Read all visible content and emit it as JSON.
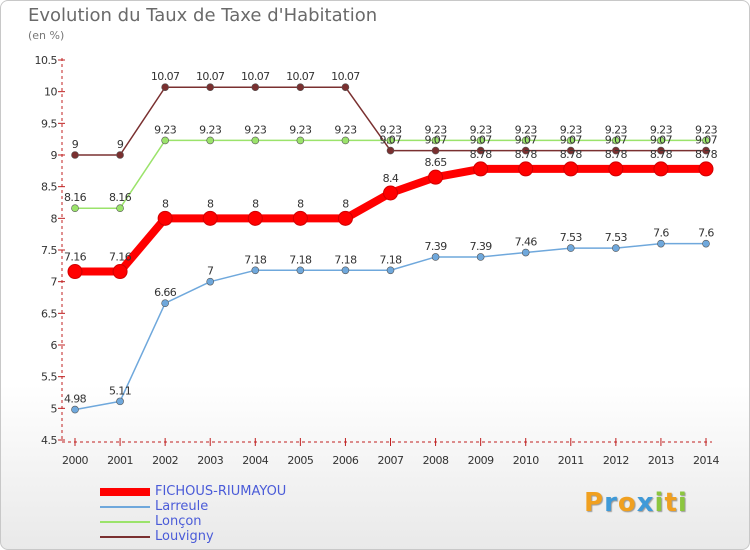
{
  "chart_data": {
    "type": "line",
    "title": "Evolution du Taux de Taxe d'Habitation",
    "ylabel": "(en %)",
    "xlabel": "",
    "ylim": [
      4.5,
      10.5
    ],
    "yticks": [
      "4.5",
      "5",
      "5.5",
      "6",
      "6.5",
      "7",
      "7.5",
      "8",
      "8.5",
      "9",
      "9.5",
      "10",
      "10.5"
    ],
    "x": [
      "2000",
      "2001",
      "2002",
      "2003",
      "2004",
      "2005",
      "2006",
      "2007",
      "2008",
      "2009",
      "2010",
      "2011",
      "2012",
      "2013",
      "2014"
    ],
    "grid": false,
    "series": [
      {
        "name": "FICHOUS-RIUMAYOU",
        "color": "#ff0000",
        "values": [
          7.16,
          7.16,
          8,
          8,
          8,
          8,
          8,
          8.4,
          8.65,
          8.78,
          8.78,
          8.78,
          8.78,
          8.78,
          8.78
        ],
        "labels": [
          "7.16",
          "7.16",
          "8",
          "8",
          "8",
          "8",
          "8",
          "8.4",
          "8.65",
          "8.78",
          "8.78",
          "8.78",
          "8.78",
          "8.78",
          "8.78"
        ]
      },
      {
        "name": "Larreule",
        "color": "#6fa8dc",
        "values": [
          4.98,
          5.11,
          6.66,
          7,
          7.18,
          7.18,
          7.18,
          7.18,
          7.39,
          7.39,
          7.46,
          7.53,
          7.53,
          7.6,
          7.6
        ],
        "labels": [
          "4.98",
          "5.11",
          "6.66",
          "7",
          "7.18",
          "7.18",
          "7.18",
          "7.18",
          "7.39",
          "7.39",
          "7.46",
          "7.53",
          "7.53",
          "7.6",
          "7.6"
        ]
      },
      {
        "name": "Lonçon",
        "color": "#9be36b",
        "values": [
          8.16,
          8.16,
          9.23,
          9.23,
          9.23,
          9.23,
          9.23,
          9.23,
          9.23,
          9.23,
          9.23,
          9.23,
          9.23,
          9.23,
          9.23
        ],
        "labels": [
          "8.16",
          "8.16",
          "9.23",
          "9.23",
          "9.23",
          "9.23",
          "9.23",
          "9.23",
          "9.23",
          "9.23",
          "9.23",
          "9.23",
          "9.23",
          "9.23",
          "9.23"
        ]
      },
      {
        "name": "Louvigny",
        "color": "#7a3030",
        "values": [
          9,
          9,
          10.07,
          10.07,
          10.07,
          10.07,
          10.07,
          9.07,
          9.07,
          9.07,
          9.07,
          9.07,
          9.07,
          9.07,
          9.07
        ],
        "labels": [
          "9",
          "9",
          "10.07",
          "10.07",
          "10.07",
          "10.07",
          "10.07",
          "9.07",
          "9.07",
          "9.07",
          "9.07",
          "9.07",
          "9.07",
          "9.07",
          "9.07"
        ]
      }
    ]
  },
  "brand": {
    "letters": [
      "P",
      "r",
      "o",
      "x",
      "i",
      "t",
      "i"
    ],
    "colors": [
      "#f0a020",
      "#3f9ad8",
      "#f0a020",
      "#3f9ad8",
      "#8cc63f",
      "#f0a020",
      "#8cc63f"
    ]
  }
}
